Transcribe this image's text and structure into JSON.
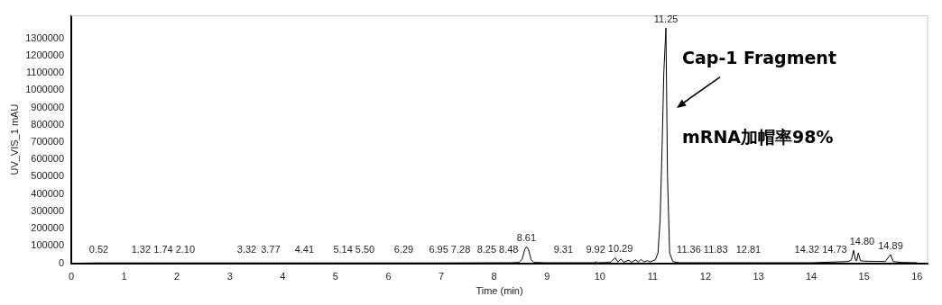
{
  "chart_data": {
    "type": "line",
    "xlabel": "Time (min)",
    "ylabel": "UV_VIS_1 mAU",
    "xlim": [
      0,
      16.2
    ],
    "xticks": [
      0,
      1,
      2,
      3,
      4,
      5,
      6,
      7,
      8,
      9,
      10,
      11,
      12,
      13,
      14,
      15,
      16
    ],
    "ylim": [
      0,
      1430000
    ],
    "yticks": [
      0,
      100000,
      200000,
      300000,
      400000,
      500000,
      600000,
      700000,
      800000,
      900000,
      1000000,
      1100000,
      1200000,
      1300000
    ],
    "grid": false,
    "legend": false,
    "marker": "none",
    "line_style": "solid",
    "series": [
      {
        "color": "#000000",
        "x": [
          0,
          0.5,
          1,
          2,
          3,
          4,
          5,
          6,
          7,
          8,
          8.3,
          8.47,
          8.53,
          8.58,
          8.61,
          8.65,
          8.7,
          8.75,
          9,
          9.9,
          9.92,
          9.95,
          10.2,
          10.29,
          10.34,
          10.4,
          10.45,
          10.55,
          10.6,
          10.68,
          10.72,
          10.78,
          10.83,
          10.9,
          10.95,
          11.05,
          11.1,
          11.14,
          11.18,
          11.21,
          11.25,
          11.28,
          11.32,
          11.38,
          11.5,
          12,
          13,
          14,
          14.7,
          14.76,
          14.8,
          14.84,
          14.86,
          14.89,
          14.93,
          15,
          15.4,
          15.5,
          15.55,
          15.7,
          16
        ],
        "values": [
          0,
          2000,
          2000,
          2000,
          2000,
          2000,
          2000,
          2000,
          2000,
          3000,
          3000,
          5000,
          25000,
          80000,
          95000,
          80000,
          20000,
          5000,
          3000,
          3000,
          10000,
          3000,
          5000,
          32000,
          8000,
          25000,
          6000,
          18000,
          6000,
          20000,
          6000,
          22000,
          8000,
          15000,
          8000,
          20000,
          60000,
          250000,
          700000,
          1100000,
          1360000,
          500000,
          60000,
          10000,
          3000,
          3000,
          3000,
          3000,
          10000,
          20000,
          75000,
          15000,
          15000,
          60000,
          15000,
          12000,
          10000,
          50000,
          10000,
          5000,
          3000
        ]
      }
    ],
    "annotations": [
      "Cap-1 Fragment",
      "mRNA加帽率98%",
      {
        "text": "0.52",
        "x": 0.52,
        "y": 3000
      },
      {
        "text": "1.32",
        "x": 1.32,
        "y": 3000
      },
      {
        "text": "1.74",
        "x": 1.74,
        "y": 3000
      },
      {
        "text": "2.10",
        "x": 2.1,
        "y": 3000
      },
      {
        "text": "3.32",
        "x": 3.32,
        "y": 3000
      },
      {
        "text": "3.77",
        "x": 3.77,
        "y": 3000
      },
      {
        "text": "4.41",
        "x": 4.41,
        "y": 3000
      },
      {
        "text": "5.14",
        "x": 5.14,
        "y": 3000
      },
      {
        "text": "5.50",
        "x": 5.5,
        "y": 3000
      },
      {
        "text": "6.29",
        "x": 6.29,
        "y": 3000
      },
      {
        "text": "6.95",
        "x": 6.95,
        "y": 3000
      },
      {
        "text": "7.28",
        "x": 7.28,
        "y": 3000
      },
      {
        "text": "8.25",
        "x": 8.25,
        "y": 3000
      },
      {
        "text": "8.48",
        "x": 8.48,
        "y": 3000
      },
      {
        "text": "8.61",
        "x": 8.61,
        "y": 95000
      },
      {
        "text": "9.31",
        "x": 9.31,
        "y": 3000
      },
      {
        "text": "9.92",
        "x": 9.92,
        "y": 10000
      },
      {
        "text": "10.29",
        "x": 10.29,
        "y": 32000
      },
      {
        "text": "11.25",
        "x": 11.25,
        "y": 1360000
      },
      {
        "text": "11.36",
        "x": 11.36,
        "y": 3000
      },
      {
        "text": "11.83",
        "x": 11.83,
        "y": 3000
      },
      {
        "text": "12.81",
        "x": 12.81,
        "y": 3000
      },
      {
        "text": "14.32",
        "x": 14.32,
        "y": 3000
      },
      {
        "text": "14.73",
        "x": 14.73,
        "y": 3000
      },
      {
        "text": "14.80",
        "x": 14.8,
        "y": 75000
      },
      {
        "text": "14.89",
        "x": 15.5,
        "y": 50000
      }
    ]
  }
}
